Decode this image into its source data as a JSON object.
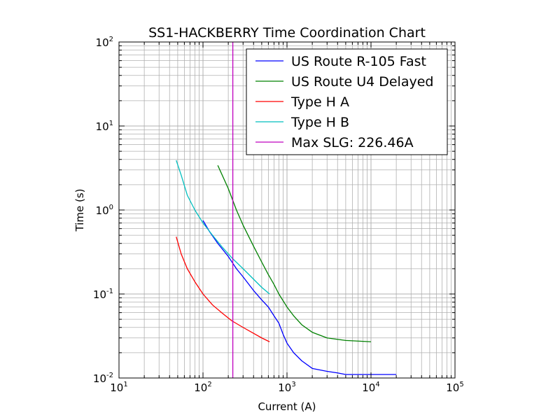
{
  "chart_data": {
    "type": "line",
    "title": "SS1-HACKBERRY Time Coordination Chart",
    "xlabel": "Current (A)",
    "ylabel": "Time (s)",
    "xscale": "log",
    "yscale": "log",
    "xlim": [
      10,
      100000
    ],
    "ylim": [
      0.01,
      100
    ],
    "grid": true,
    "legend_position": "top-right",
    "x_tick_labels": [
      {
        "base": "10",
        "exp": "1"
      },
      {
        "base": "10",
        "exp": "2"
      },
      {
        "base": "10",
        "exp": "3"
      },
      {
        "base": "10",
        "exp": "4"
      },
      {
        "base": "10",
        "exp": "5"
      }
    ],
    "y_tick_labels": [
      {
        "base": "10",
        "exp": "-2"
      },
      {
        "base": "10",
        "exp": "-1"
      },
      {
        "base": "10",
        "exp": "0"
      },
      {
        "base": "10",
        "exp": "1"
      },
      {
        "base": "10",
        "exp": "2"
      }
    ],
    "series": [
      {
        "name": "US Route R-105 Fast",
        "color": "#0000ff",
        "x": [
          100,
          120,
          150,
          200,
          250,
          300,
          400,
          500,
          600,
          700,
          800,
          900,
          1000,
          1200,
          1500,
          2000,
          3000,
          4000,
          5000,
          10000,
          20000
        ],
        "y": [
          0.75,
          0.55,
          0.4,
          0.28,
          0.2,
          0.16,
          0.11,
          0.085,
          0.07,
          0.055,
          0.045,
          0.033,
          0.026,
          0.02,
          0.016,
          0.013,
          0.012,
          0.0115,
          0.011,
          0.011,
          0.011
        ]
      },
      {
        "name": "US Route U4 Delayed",
        "color": "#008000",
        "x": [
          150,
          200,
          250,
          300,
          400,
          500,
          600,
          700,
          800,
          1000,
          1200,
          1500,
          2000,
          3000,
          5000,
          7000,
          10000
        ],
        "y": [
          3.4,
          1.8,
          1.0,
          0.66,
          0.37,
          0.24,
          0.17,
          0.13,
          0.1,
          0.07,
          0.055,
          0.043,
          0.035,
          0.03,
          0.028,
          0.0275,
          0.027
        ]
      },
      {
        "name": "Type H A",
        "color": "#ff0000",
        "x": [
          48,
          55,
          65,
          80,
          100,
          130,
          170,
          220,
          300,
          400,
          500,
          620
        ],
        "y": [
          0.48,
          0.3,
          0.2,
          0.14,
          0.1,
          0.074,
          0.059,
          0.048,
          0.04,
          0.034,
          0.03,
          0.027
        ]
      },
      {
        "name": "Type H B",
        "color": "#00bfbf",
        "x": [
          48,
          55,
          65,
          80,
          100,
          130,
          170,
          220,
          300,
          400,
          500,
          620
        ],
        "y": [
          3.9,
          2.6,
          1.5,
          1.0,
          0.7,
          0.5,
          0.36,
          0.27,
          0.2,
          0.15,
          0.12,
          0.1
        ]
      },
      {
        "name": "Max SLG: 226.46A",
        "color": "#bf00bf",
        "x": [
          226.46,
          226.46
        ],
        "y": [
          0.01,
          100
        ]
      }
    ]
  }
}
